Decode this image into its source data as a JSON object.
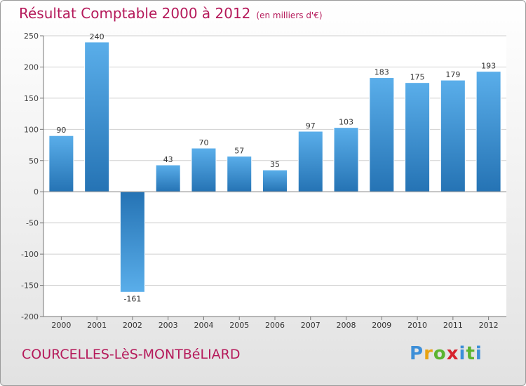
{
  "title": "Résultat Comptable 2000 à 2012",
  "subtitle": "(en milliers d'€)",
  "commune": "COURCELLES-LèS-MONTBéLIARD",
  "logo": "Proxiti",
  "colors": {
    "title": "#b5195a",
    "bar_dark": "#2573b4",
    "bar_light": "#5aaeea",
    "grid": "#d0d0d0"
  },
  "chart_data": {
    "type": "bar",
    "title": "Résultat Comptable 2000 à 2012",
    "xlabel": "",
    "ylabel": "",
    "categories": [
      "2000",
      "2001",
      "2002",
      "2003",
      "2004",
      "2005",
      "2006",
      "2007",
      "2008",
      "2009",
      "2010",
      "2011",
      "2012"
    ],
    "values": [
      90,
      240,
      -161,
      43,
      70,
      57,
      35,
      97,
      103,
      183,
      175,
      179,
      193
    ],
    "value_labels": [
      "90",
      "240",
      "-161",
      "43",
      "70",
      "57",
      "35",
      "97",
      "103",
      "183",
      "175",
      "179",
      "193"
    ],
    "ylim": [
      -200,
      250
    ],
    "yticks": [
      250,
      200,
      150,
      100,
      50,
      0,
      -50,
      -100,
      -150,
      -200
    ],
    "ytick_labels": [
      "250",
      "200",
      "150",
      "100",
      "50",
      "0",
      "-50",
      "-100",
      "-150",
      "-200"
    ],
    "grid": true
  }
}
